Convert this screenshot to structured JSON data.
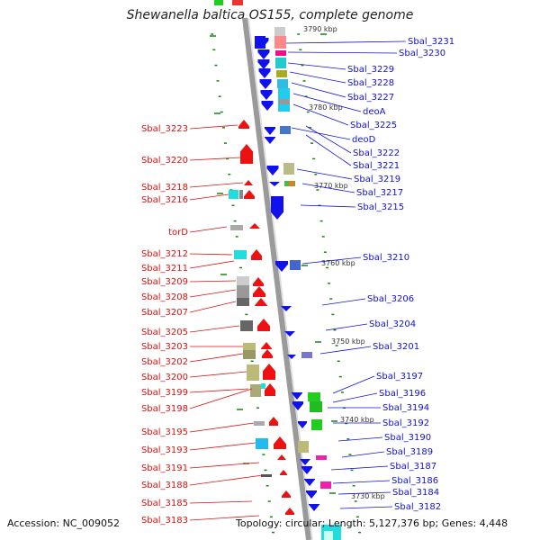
{
  "title": "Shewanella baltica OS155, complete genome",
  "accession": "Accession: NC_009052",
  "summary": "Topology: circular; Length: 5,127,376 bp; Genes: 4,448",
  "colors": {
    "forward": "#ee1111",
    "reverse": "#1111ee",
    "tick": "#118811",
    "backbone": "#999999"
  },
  "kbp_marks": [
    "3790 kbp",
    "3780 kbp",
    "3770 kbp",
    "3760 kbp",
    "3750 kbp",
    "3740 kbp",
    "3730 kbp"
  ],
  "left_labels": [
    "Sbal_3223",
    "Sbal_3220",
    "Sbal_3218",
    "Sbal_3216",
    "torD",
    "Sbal_3212",
    "Sbal_3211",
    "Sbal_3209",
    "Sbal_3208",
    "Sbal_3207",
    "Sbal_3205",
    "Sbal_3203",
    "Sbal_3202",
    "Sbal_3200",
    "Sbal_3199",
    "Sbal_3198",
    "Sbal_3195",
    "Sbal_3193",
    "Sbal_3191",
    "Sbal_3188",
    "Sbal_3185",
    "Sbal_3183"
  ],
  "right_labels": [
    "Sbal_3231",
    "Sbal_3230",
    "Sbal_3229",
    "Sbal_3228",
    "Sbal_3227",
    "deoA",
    "Sbal_3225",
    "deoD",
    "Sbal_3222",
    "Sbal_3221",
    "Sbal_3219",
    "Sbal_3217",
    "Sbal_3215",
    "Sbal_3210",
    "Sbal_3206",
    "Sbal_3204",
    "Sbal_3201",
    "Sbal_3197",
    "Sbal_3196",
    "Sbal_3194",
    "Sbal_3192",
    "Sbal_3190",
    "Sbal_3189",
    "Sbal_3187",
    "Sbal_3186",
    "Sbal_3184",
    "Sbal_3182"
  ]
}
